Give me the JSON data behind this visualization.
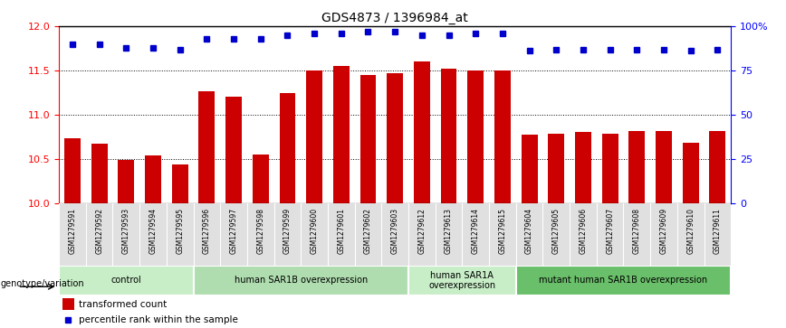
{
  "title": "GDS4873 / 1396984_at",
  "samples": [
    "GSM1279591",
    "GSM1279592",
    "GSM1279593",
    "GSM1279594",
    "GSM1279595",
    "GSM1279596",
    "GSM1279597",
    "GSM1279598",
    "GSM1279599",
    "GSM1279600",
    "GSM1279601",
    "GSM1279602",
    "GSM1279603",
    "GSM1279612",
    "GSM1279613",
    "GSM1279614",
    "GSM1279615",
    "GSM1279604",
    "GSM1279605",
    "GSM1279606",
    "GSM1279607",
    "GSM1279608",
    "GSM1279609",
    "GSM1279610",
    "GSM1279611"
  ],
  "bar_values": [
    10.74,
    10.67,
    10.49,
    10.54,
    10.44,
    11.27,
    11.2,
    10.55,
    11.25,
    11.5,
    11.55,
    11.45,
    11.47,
    11.6,
    11.52,
    11.5,
    11.5,
    10.78,
    10.79,
    10.81,
    10.79,
    10.82,
    10.82,
    10.68,
    10.82
  ],
  "percentile_values": [
    90,
    90,
    88,
    88,
    87,
    93,
    93,
    93,
    95,
    96,
    96,
    97,
    97,
    95,
    95,
    96,
    96,
    86,
    87,
    87,
    87,
    87,
    87,
    86,
    87
  ],
  "groups": [
    {
      "label": "control",
      "start": 0,
      "end": 5
    },
    {
      "label": "human SAR1B overexpression",
      "start": 5,
      "end": 13
    },
    {
      "label": "human SAR1A\noverexpression",
      "start": 13,
      "end": 17
    },
    {
      "label": "mutant human SAR1B overexpression",
      "start": 17,
      "end": 25
    }
  ],
  "group_colors": [
    "#c8eec8",
    "#b0ddb0",
    "#c8eec8",
    "#6abf6a"
  ],
  "bar_color": "#cc0000",
  "dot_color": "#0000cc",
  "ylim_left": [
    10.0,
    12.0
  ],
  "ylim_right": [
    0,
    100
  ],
  "yticks_left": [
    10.0,
    10.5,
    11.0,
    11.5,
    12.0
  ],
  "yticks_right": [
    0,
    25,
    50,
    75,
    100
  ],
  "yticklabels_right": [
    "0",
    "25",
    "50",
    "75",
    "100%"
  ],
  "grid_values": [
    10.5,
    11.0,
    11.5
  ],
  "legend_bar_label": "transformed count",
  "legend_dot_label": "percentile rank within the sample",
  "group_label": "genotype/variation"
}
